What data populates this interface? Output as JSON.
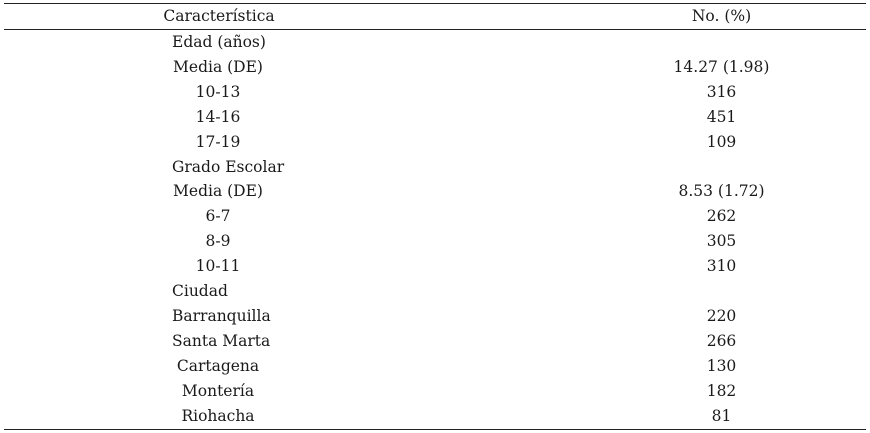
{
  "table": {
    "headers": {
      "characteristic": "Característica",
      "value": "No. (%)"
    },
    "rows": [
      {
        "type": "section",
        "label": "Edad (años)",
        "value": ""
      },
      {
        "type": "item",
        "label": "Media (DE)",
        "value": "14.27 (1.98)"
      },
      {
        "type": "item",
        "label": "10-13",
        "value": "316"
      },
      {
        "type": "item",
        "label": "14-16",
        "value": "451"
      },
      {
        "type": "item",
        "label": "17-19",
        "value": "109"
      },
      {
        "type": "section",
        "label": "Grado Escolar",
        "value": ""
      },
      {
        "type": "item",
        "label": "Media (DE)",
        "value": "8.53 (1.72)"
      },
      {
        "type": "item",
        "label": "6-7",
        "value": "262"
      },
      {
        "type": "item",
        "label": "8-9",
        "value": "305"
      },
      {
        "type": "item",
        "label": "10-11",
        "value": "310"
      },
      {
        "type": "section",
        "label": "Ciudad",
        "value": ""
      },
      {
        "type": "item",
        "label": "Barranquilla",
        "value": "220"
      },
      {
        "type": "item",
        "label": "Santa Marta",
        "value": "266"
      },
      {
        "type": "item",
        "label": "Cartagena",
        "value": "130"
      },
      {
        "type": "item",
        "label": "Montería",
        "value": "182"
      },
      {
        "type": "item",
        "label": "Riohacha",
        "value": "81"
      }
    ]
  }
}
